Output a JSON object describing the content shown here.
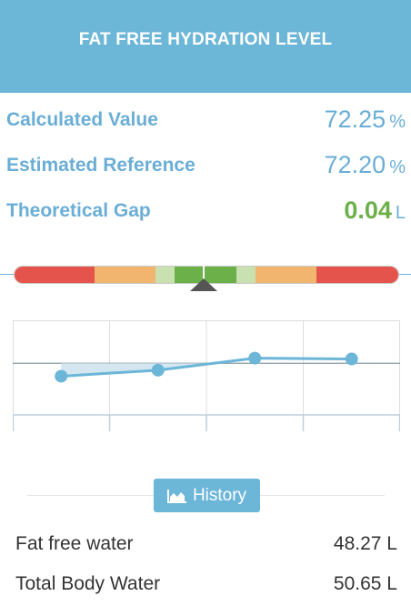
{
  "header": {
    "title": "FAT FREE HYDRATION LEVEL"
  },
  "metrics": [
    {
      "label": "Calculated Value",
      "value": "72.25",
      "unit": "%"
    },
    {
      "label": "Estimated Reference",
      "value": "72.20",
      "unit": "%"
    },
    {
      "label": "Theoretical Gap",
      "value": "0.04",
      "unit": "L"
    }
  ],
  "colors": {
    "accent": "#6cb6d8",
    "label_blue": "#6aaed6",
    "good_green": "#6cb04a",
    "gauge_red": "#e5544c",
    "gauge_orange": "#f2b56f",
    "gauge_light_green": "#c9e0b0",
    "gauge_green": "#6cb04a"
  },
  "gauge": {
    "segments": [
      {
        "color": "#e5544c",
        "weight": 88
      },
      {
        "color": "#f2b56f",
        "weight": 68
      },
      {
        "color": "#c9e0b0",
        "weight": 21
      },
      {
        "color": "#6cb04a",
        "weight": 68
      },
      {
        "color": "#c9e0b0",
        "weight": 21
      },
      {
        "color": "#f2b56f",
        "weight": 68
      },
      {
        "color": "#e5544c",
        "weight": 90
      }
    ]
  },
  "chart_data": {
    "type": "line",
    "x": [
      1,
      2,
      3,
      4
    ],
    "series": [
      {
        "values": [
          72.05,
          72.12,
          72.26,
          72.25
        ]
      }
    ],
    "reference": 72.2,
    "ylim": [
      71.6,
      72.7
    ],
    "grid": true
  },
  "history_button": {
    "label": "History",
    "icon": "area-chart-icon"
  },
  "stats": [
    {
      "label": "Fat free water",
      "value": "48.27 L"
    },
    {
      "label": "Total Body Water",
      "value": "50.65 L"
    }
  ]
}
